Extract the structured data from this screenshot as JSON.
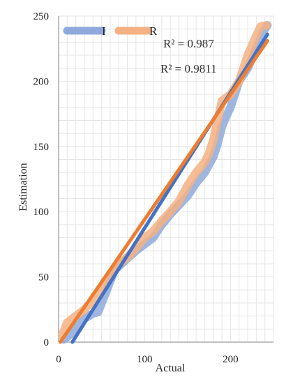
{
  "chart_data": {
    "type": "line",
    "title": "",
    "xlabel": "Actual",
    "ylabel": "Estimation",
    "xlim": [
      0,
      250
    ],
    "ylim": [
      0,
      250
    ],
    "xticks": [
      0,
      100,
      200
    ],
    "yticks": [
      0,
      50,
      100,
      150,
      200,
      250
    ],
    "grid": true,
    "legend_position": "top-left",
    "series": [
      {
        "name": "I",
        "color": "#8EA9DB",
        "x": [
          6,
          12,
          20,
          30,
          40,
          46,
          55,
          65,
          78,
          90,
          100,
          110,
          120,
          130,
          140,
          150,
          160,
          170,
          180,
          185,
          190,
          195,
          200,
          205,
          210,
          220,
          230,
          238,
          243
        ],
        "y": [
          2,
          5,
          10,
          18,
          22,
          23,
          38,
          55,
          63,
          70,
          75,
          80,
          90,
          98,
          105,
          112,
          122,
          130,
          142,
          152,
          165,
          173,
          180,
          190,
          200,
          210,
          225,
          238,
          243
        ]
      },
      {
        "name": "R",
        "color": "#F4B183",
        "x": [
          4,
          10,
          20,
          30,
          40,
          50,
          60,
          70,
          80,
          90,
          100,
          110,
          120,
          130,
          140,
          150,
          160,
          170,
          175,
          180,
          185,
          190,
          200,
          210,
          220,
          230,
          235,
          242
        ],
        "y": [
          5,
          15,
          20,
          25,
          32,
          40,
          52,
          60,
          65,
          72,
          80,
          85,
          93,
          100,
          108,
          120,
          130,
          138,
          145,
          155,
          170,
          185,
          190,
          200,
          220,
          235,
          242,
          243
        ]
      }
    ],
    "trendlines": [
      {
        "series": "I",
        "color": "#4472C4",
        "x": [
          16,
          243
        ],
        "y": [
          0,
          236
        ]
      },
      {
        "series": "R",
        "color": "#ED7D31",
        "x": [
          2,
          243
        ],
        "y": [
          0,
          231
        ]
      }
    ],
    "annotations": [
      {
        "text": "R² = 0.987"
      },
      {
        "text": "R² = 0.9811"
      }
    ]
  }
}
